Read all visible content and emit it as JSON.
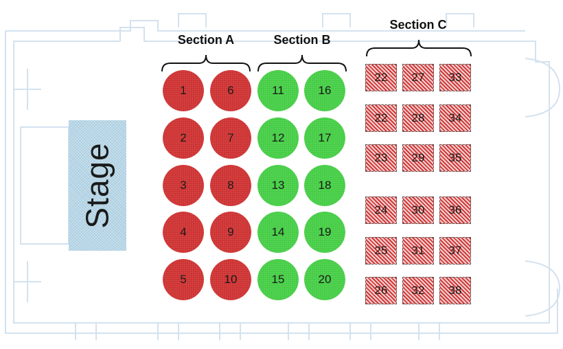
{
  "stage": {
    "label": "Stage"
  },
  "sections": {
    "a": {
      "label": "Section A",
      "color": "#cc2a2a",
      "seats": [
        "1",
        "2",
        "3",
        "4",
        "5",
        "6",
        "7",
        "8",
        "9",
        "10"
      ]
    },
    "b": {
      "label": "Section B",
      "color": "#3ecb3e",
      "seats": [
        "11",
        "12",
        "13",
        "14",
        "15",
        "16",
        "17",
        "18",
        "19",
        "20"
      ]
    },
    "c": {
      "label": "Section C",
      "color": "#d03a3a",
      "seats": [
        "22",
        "27",
        "33",
        "22",
        "28",
        "34",
        "23",
        "29",
        "35",
        "24",
        "30",
        "36",
        "25",
        "31",
        "37",
        "26",
        "32",
        "38"
      ]
    }
  }
}
